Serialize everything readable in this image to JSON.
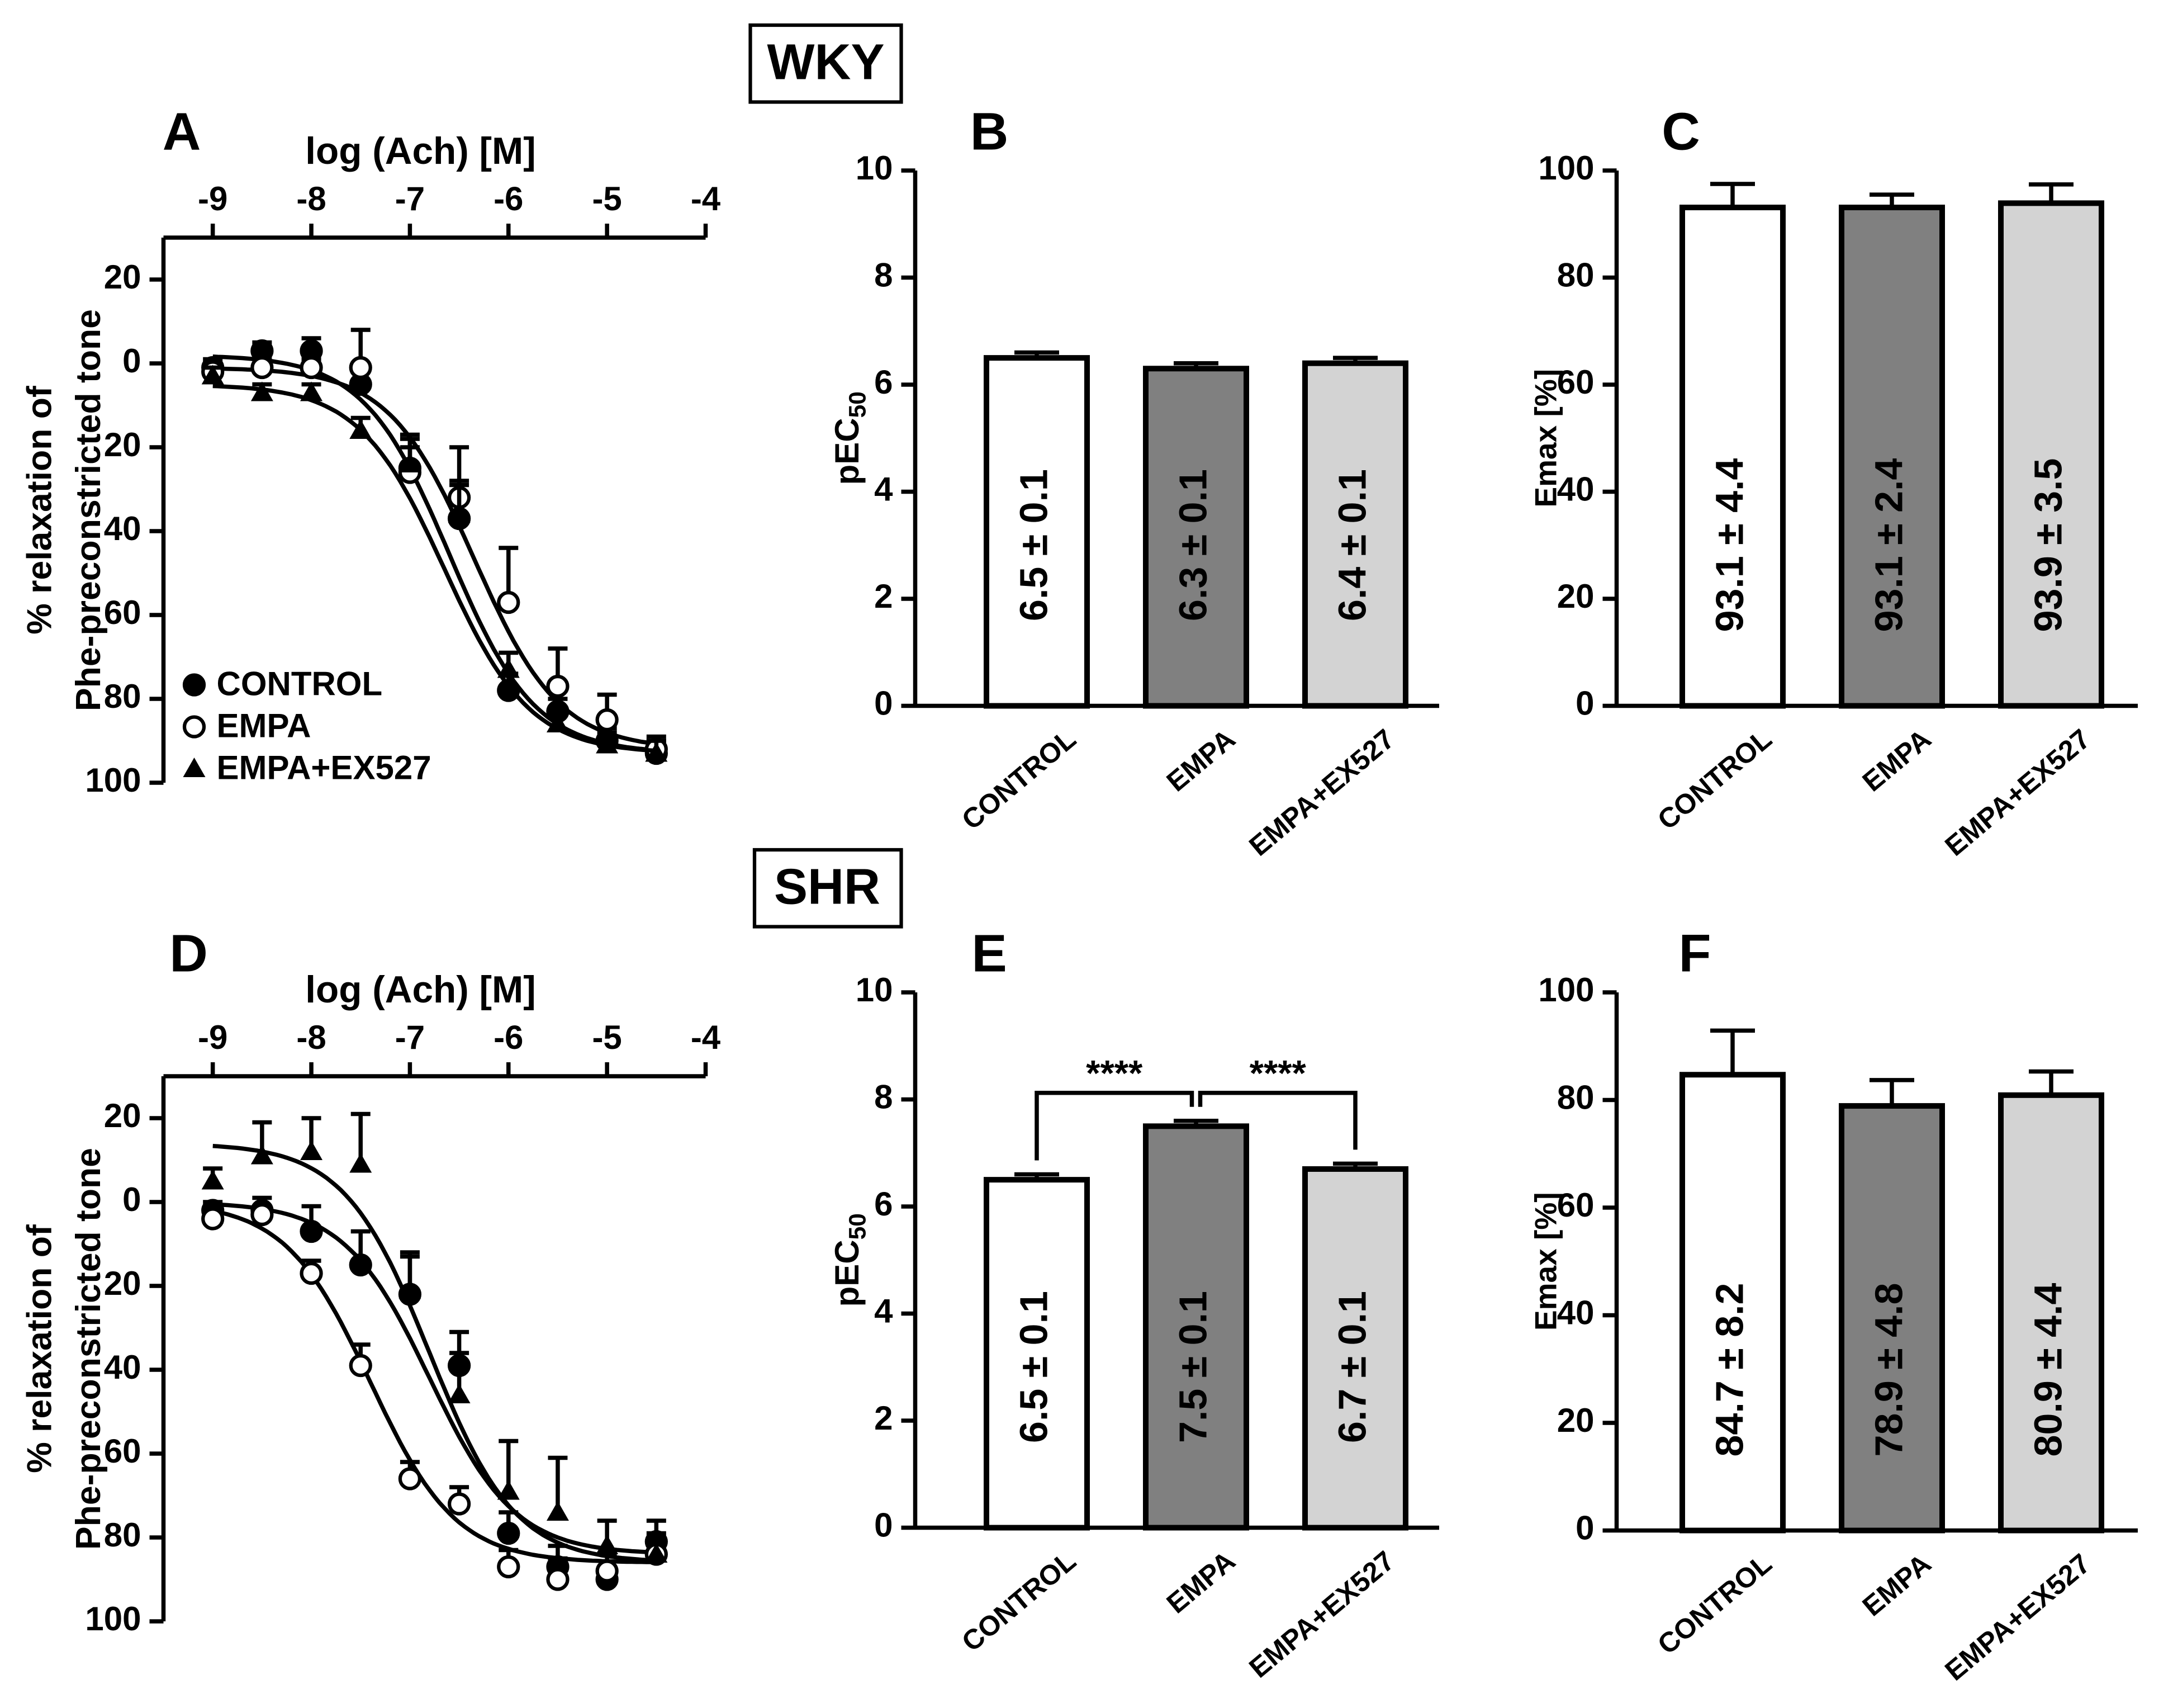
{
  "sections": [
    "WKY",
    "SHR"
  ],
  "chart_data": [
    {
      "type": "line",
      "panel_label": "A",
      "x_label": "log (Ach) [M]",
      "y_label": [
        "% relaxation of",
        "Phe-preconstricted tone"
      ],
      "x": [
        -9,
        -8.5,
        -8,
        -7.5,
        -7,
        -6.5,
        -6,
        -5.5,
        -5,
        -4.5
      ],
      "xlim": [
        -9.5,
        -4
      ],
      "xticks": [
        -9,
        -8,
        -7,
        -6,
        -5,
        -4
      ],
      "ylim": [
        -30,
        100
      ],
      "y_inverted": true,
      "yticks": [
        {
          "value": -20,
          "label": "20"
        },
        0,
        20,
        40,
        60,
        80,
        100
      ],
      "legend": "lower left",
      "series": [
        {
          "name": "CONTROL",
          "marker": "filled-circle",
          "values": [
            1,
            -3,
            -3,
            5,
            25,
            37,
            78,
            83,
            90,
            93
          ],
          "errors": [
            2,
            2,
            3,
            3,
            5,
            8,
            4,
            5,
            3,
            3
          ],
          "curve": {
            "top": -2,
            "bottom": 93,
            "log_ec50": -6.6
          }
        },
        {
          "name": "EMPA",
          "marker": "open-circle",
          "values": [
            2,
            1,
            1,
            1,
            26,
            32,
            57,
            77,
            85,
            92
          ],
          "errors": [
            2,
            2,
            2,
            9,
            9,
            12,
            13,
            9,
            6,
            3
          ],
          "curve": {
            "top": 1,
            "bottom": 92,
            "log_ec50": -6.35
          }
        },
        {
          "name": "EMPA+EX527",
          "marker": "triangle",
          "values": [
            3,
            7,
            7,
            16,
            24,
            36,
            73,
            86,
            91,
            93
          ],
          "errors": [
            2,
            2,
            2,
            3,
            6,
            8,
            4,
            6,
            3,
            3
          ],
          "curve": {
            "top": 5,
            "bottom": 93,
            "log_ec50": -6.65
          }
        }
      ]
    },
    {
      "type": "bar",
      "panel_label": "B",
      "y_label": {
        "text": "pEC",
        "subscript": "50"
      },
      "categories": [
        "CONTROL",
        "EMPA",
        "EMPA+EX527"
      ],
      "colors": [
        "#ffffff",
        "#808080",
        "#d3d3d3"
      ],
      "values": [
        6.5,
        6.3,
        6.4
      ],
      "errors": [
        0.1,
        0.1,
        0.1
      ],
      "value_labels": [
        "6.5 ± 0.1",
        "6.3 ± 0.1",
        "6.4 ± 0.1"
      ],
      "ylim": [
        0,
        10
      ],
      "yticks": [
        0,
        2,
        4,
        6,
        8,
        10
      ]
    },
    {
      "type": "bar",
      "panel_label": "C",
      "y_label": "Emax [%]",
      "categories": [
        "CONTROL",
        "EMPA",
        "EMPA+EX527"
      ],
      "colors": [
        "#ffffff",
        "#808080",
        "#d3d3d3"
      ],
      "values": [
        93.1,
        93.1,
        93.9
      ],
      "errors": [
        4.4,
        2.4,
        3.5
      ],
      "value_labels": [
        "93.1 ± 4.4",
        "93.1 ± 2.4",
        "93.9 ± 3.5"
      ],
      "ylim": [
        0,
        100
      ],
      "yticks": [
        0,
        20,
        40,
        60,
        80,
        100
      ]
    },
    {
      "type": "line",
      "panel_label": "D",
      "x_label": "log (Ach) [M]",
      "y_label": [
        "% relaxation of",
        "Phe-preconstricted tone"
      ],
      "x": [
        -9,
        -8.5,
        -8,
        -7.5,
        -7,
        -6.5,
        -6,
        -5.5,
        -5,
        -4.5
      ],
      "xlim": [
        -9.5,
        -4
      ],
      "xticks": [
        -9,
        -8,
        -7,
        -6,
        -5,
        -4
      ],
      "ylim": [
        -30,
        100
      ],
      "y_inverted": true,
      "yticks": [
        {
          "value": -20,
          "label": "20"
        },
        0,
        20,
        40,
        60,
        80,
        100
      ],
      "series": [
        {
          "marker": "filled-circle",
          "values": [
            2,
            2,
            7,
            15,
            22,
            39,
            79,
            87,
            90,
            81
          ],
          "errors": [
            2,
            3,
            6,
            8,
            10,
            8,
            5,
            5,
            3,
            5
          ],
          "curve": {
            "top": 0,
            "bottom": 84,
            "log_ec50": -6.8
          }
        },
        {
          "marker": "open-circle",
          "values": [
            4,
            3,
            17,
            39,
            66,
            72,
            87,
            90,
            88,
            84
          ],
          "errors": [
            2,
            2,
            3,
            5,
            4,
            4,
            4,
            5,
            4,
            3
          ],
          "curve": {
            "top": 0,
            "bottom": 86,
            "log_ec50": -7.4
          }
        },
        {
          "marker": "triangle",
          "values": [
            -5,
            -11,
            -12,
            -9,
            21,
            46,
            69,
            74,
            82,
            84
          ],
          "errors": [
            3,
            8,
            8,
            12,
            8,
            10,
            12,
            13,
            6,
            5
          ],
          "curve": {
            "top": -14,
            "bottom": 86,
            "log_ec50": -6.8
          }
        }
      ]
    },
    {
      "type": "bar",
      "panel_label": "E",
      "y_label": {
        "text": "pEC",
        "subscript": "50"
      },
      "categories": [
        "CONTROL",
        "EMPA",
        "EMPA+EX527"
      ],
      "colors": [
        "#ffffff",
        "#808080",
        "#d3d3d3"
      ],
      "values": [
        6.5,
        7.5,
        6.7
      ],
      "errors": [
        0.1,
        0.1,
        0.1
      ],
      "value_labels": [
        "6.5 ± 0.1",
        "7.5 ± 0.1",
        "6.7 ± 0.1"
      ],
      "ylim": [
        0,
        10
      ],
      "yticks": [
        0,
        2,
        4,
        6,
        8,
        10
      ],
      "annotations": [
        {
          "text": "****",
          "between": [
            "CONTROL",
            "EMPA"
          ]
        },
        {
          "text": "****",
          "between": [
            "EMPA",
            "EMPA+EX527"
          ]
        }
      ]
    },
    {
      "type": "bar",
      "panel_label": "F",
      "y_label": "Emax [%]",
      "categories": [
        "CONTROL",
        "EMPA",
        "EMPA+EX527"
      ],
      "colors": [
        "#ffffff",
        "#808080",
        "#d3d3d3"
      ],
      "values": [
        84.7,
        78.9,
        80.9
      ],
      "errors": [
        8.2,
        4.8,
        4.4
      ],
      "value_labels": [
        "84.7 ± 8.2",
        "78.9 ± 4.8",
        "80.9 ± 4.4"
      ],
      "ylim": [
        0,
        100
      ],
      "yticks": [
        0,
        20,
        40,
        60,
        80,
        100
      ]
    }
  ]
}
